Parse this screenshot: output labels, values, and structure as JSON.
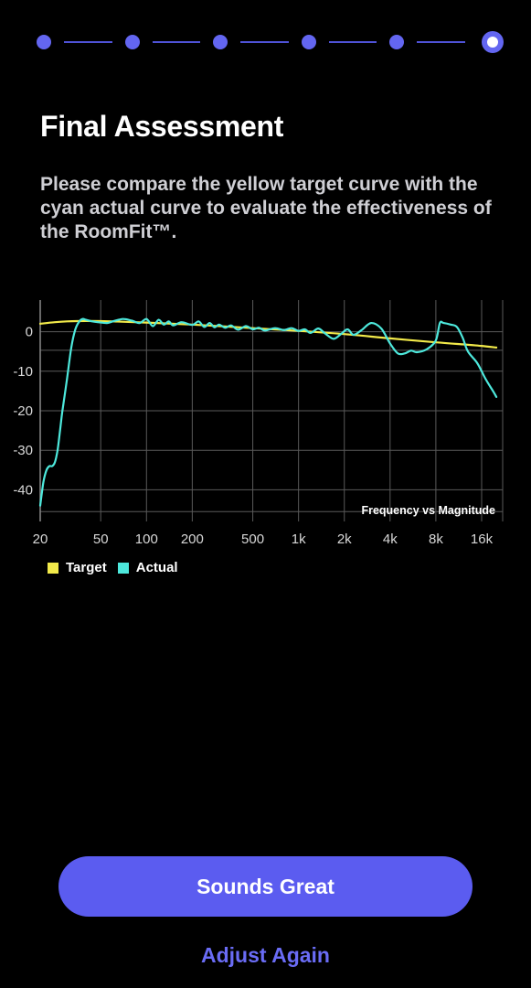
{
  "stepper": {
    "total_steps": 6,
    "current_step": 6,
    "color": "#6366f1"
  },
  "header": {
    "title": "Final Assessment",
    "description": "Please compare the yellow target curve with the cyan actual curve to evaluate the effectiveness of the RoomFit™."
  },
  "chart_data": {
    "type": "line",
    "title": "Frequency vs Magnitude",
    "x_scale": "log",
    "xlim": [
      20,
      22000
    ],
    "ylim": [
      -48,
      8
    ],
    "grid": true,
    "legend_position": "bottom-left",
    "x_ticks": [
      {
        "value": 20,
        "label": "20"
      },
      {
        "value": 50,
        "label": "50"
      },
      {
        "value": 100,
        "label": "100"
      },
      {
        "value": 200,
        "label": "200"
      },
      {
        "value": 500,
        "label": "500"
      },
      {
        "value": 1000,
        "label": "1k"
      },
      {
        "value": 2000,
        "label": "2k"
      },
      {
        "value": 4000,
        "label": "4k"
      },
      {
        "value": 8000,
        "label": "8k"
      },
      {
        "value": 16000,
        "label": "16k"
      }
    ],
    "y_ticks": [
      {
        "value": 0,
        "label": "0"
      },
      {
        "value": -10,
        "label": "-10"
      },
      {
        "value": -20,
        "label": "-20"
      },
      {
        "value": -30,
        "label": "-30"
      },
      {
        "value": -40,
        "label": "-40"
      }
    ],
    "series": [
      {
        "name": "Target",
        "color": "#f2ea4a",
        "x": [
          20,
          25,
          30,
          40,
          60,
          100,
          200,
          500,
          1000,
          2000,
          4000,
          8000,
          12000,
          16000,
          20000
        ],
        "y": [
          2,
          2.4,
          2.6,
          2.7,
          2.6,
          2.3,
          1.8,
          0.9,
          0.2,
          -0.6,
          -1.7,
          -2.7,
          -3.2,
          -3.6,
          -4.0
        ]
      },
      {
        "name": "Actual",
        "color": "#4de8dc",
        "x": [
          20,
          21,
          22,
          23,
          24,
          25,
          26,
          27,
          28,
          30,
          32,
          34,
          36,
          38,
          40,
          44,
          48,
          55,
          60,
          70,
          80,
          90,
          100,
          110,
          120,
          130,
          140,
          150,
          170,
          200,
          220,
          240,
          260,
          280,
          300,
          330,
          360,
          400,
          450,
          500,
          550,
          600,
          700,
          800,
          900,
          1000,
          1100,
          1200,
          1350,
          1500,
          1700,
          1900,
          2100,
          2300,
          2600,
          3000,
          3500,
          4000,
          4500,
          5000,
          5500,
          6000,
          7000,
          8000,
          8500,
          9000,
          10000,
          11000,
          12000,
          13000,
          15000,
          17000,
          19000,
          20000
        ],
        "y": [
          -44,
          -38,
          -35,
          -34,
          -34,
          -33,
          -30,
          -25,
          -20,
          -12,
          -4,
          0.5,
          2.5,
          3.2,
          3.0,
          2.6,
          2.4,
          2.2,
          2.6,
          3.2,
          2.8,
          2.2,
          3.2,
          1.4,
          3.0,
          1.8,
          2.6,
          1.6,
          2.4,
          1.7,
          2.6,
          1.2,
          2.2,
          1.1,
          1.8,
          1.0,
          1.6,
          0.5,
          1.4,
          0.6,
          1.0,
          0.3,
          0.9,
          0.4,
          0.9,
          0.2,
          0.6,
          -0.3,
          0.8,
          -0.5,
          -1.8,
          -0.6,
          0.6,
          -0.8,
          0.4,
          2.2,
          0.8,
          -3.0,
          -5.5,
          -5.5,
          -4.8,
          -5.2,
          -4.4,
          -2.2,
          2.2,
          2.2,
          1.8,
          1.2,
          -1.5,
          -5.0,
          -8.0,
          -12.0,
          -15.0,
          -16.5
        ]
      }
    ]
  },
  "actions": {
    "primary_label": "Sounds Great",
    "secondary_label": "Adjust Again"
  }
}
